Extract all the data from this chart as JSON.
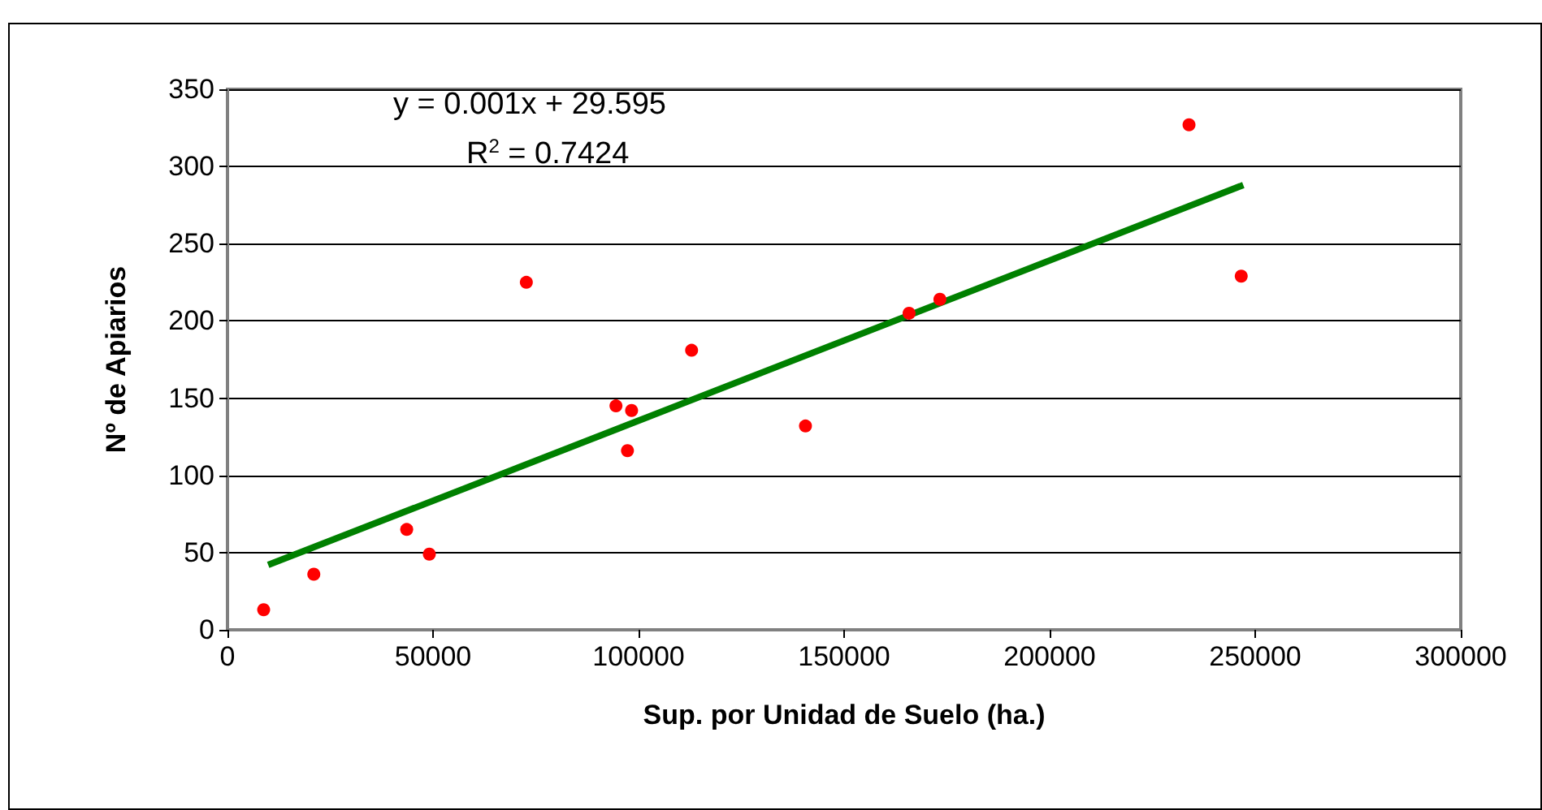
{
  "chart_data": {
    "type": "scatter",
    "xlabel": "Sup. por Unidad de Suelo (ha.)",
    "ylabel": "Nº de Apiarios",
    "xlim": [
      0,
      300000
    ],
    "xticks": [
      0,
      50000,
      100000,
      150000,
      200000,
      250000,
      300000
    ],
    "ylim": [
      0,
      350
    ],
    "yticks": [
      0,
      50,
      100,
      150,
      200,
      250,
      300,
      350
    ],
    "grid": "y",
    "marker": "circle",
    "series": [
      {
        "color": "#ff0000",
        "x": [
          8800,
          21000,
          43600,
          49100,
          72700,
          94500,
          98300,
          97300,
          112900,
          140600,
          165800,
          173300,
          233900,
          246600
        ],
        "values": [
          13,
          36,
          65,
          49,
          225,
          145,
          142,
          116,
          181,
          132,
          205,
          214,
          327,
          229
        ]
      },
      {
        "type": "line",
        "color": "#008000",
        "marker": "none",
        "line_style": "solid",
        "x": [
          9900,
          247100
        ],
        "values": [
          42,
          288
        ]
      }
    ],
    "annotations": [
      "y = 0.001x + 29.595",
      "R$^{2}$ = 0.7424"
    ]
  }
}
